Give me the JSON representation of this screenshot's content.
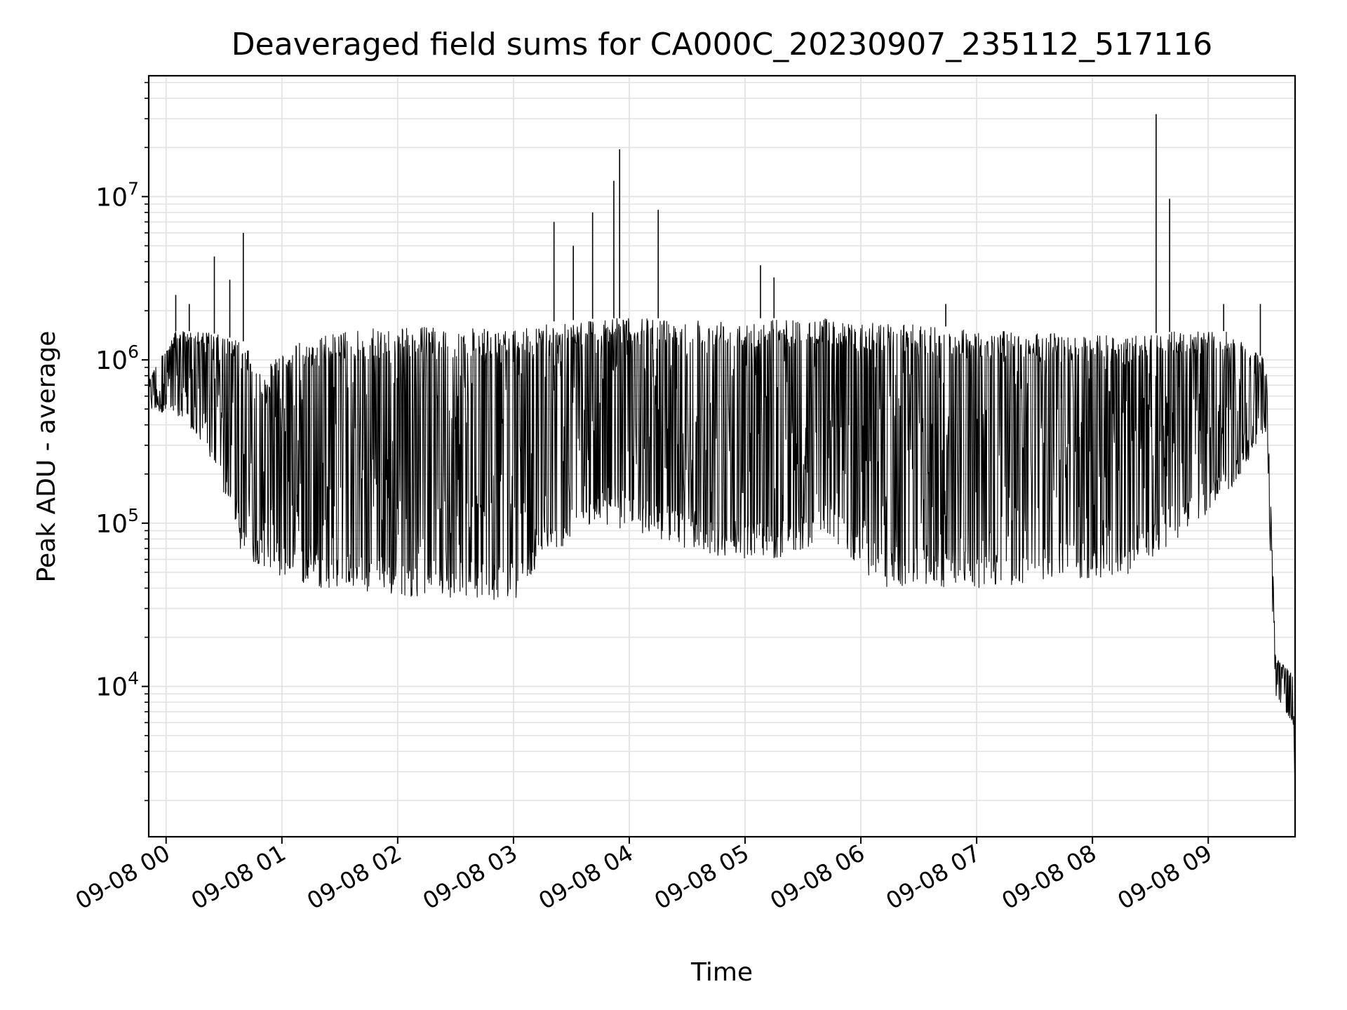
{
  "chart_data": {
    "type": "line",
    "title": "Deaveraged field sums for CA000C_20230907_235112_517116",
    "xlabel": "Time",
    "ylabel": "Peak ADU - average",
    "y_scale": "log",
    "ylim": [
      1200,
      55000000
    ],
    "xlim": [
      "2023-09-07 23:51",
      "2023-09-08 09:45"
    ],
    "grid": true,
    "legend": "none",
    "colors": {
      "line": "#000000",
      "grid": "#e3e3e3",
      "axes": "#000000",
      "background": "#ffffff"
    },
    "x_ticks": [
      {
        "time": "2023-09-08 00:00",
        "label": "09-08 00"
      },
      {
        "time": "2023-09-08 01:00",
        "label": "09-08 01"
      },
      {
        "time": "2023-09-08 02:00",
        "label": "09-08 02"
      },
      {
        "time": "2023-09-08 03:00",
        "label": "09-08 03"
      },
      {
        "time": "2023-09-08 04:00",
        "label": "09-08 04"
      },
      {
        "time": "2023-09-08 05:00",
        "label": "09-08 05"
      },
      {
        "time": "2023-09-08 06:00",
        "label": "09-08 06"
      },
      {
        "time": "2023-09-08 07:00",
        "label": "09-08 07"
      },
      {
        "time": "2023-09-08 08:00",
        "label": "09-08 08"
      },
      {
        "time": "2023-09-08 09:00",
        "label": "09-08 09"
      }
    ],
    "y_ticks": [
      {
        "value": 10000,
        "base": "10",
        "exp": "4"
      },
      {
        "value": 100000,
        "base": "10",
        "exp": "5"
      },
      {
        "value": 1000000,
        "base": "10",
        "exp": "6"
      },
      {
        "value": 10000000,
        "base": "10",
        "exp": "7"
      }
    ],
    "series": [
      {
        "time_start": "2023-09-07 23:51",
        "time_end": "2023-09-08 09:45",
        "envelope": [
          [
            "2023-09-07 23:51",
            500000,
            780000
          ],
          [
            "2023-09-08 00:05",
            450000,
            1500000
          ],
          [
            "2023-09-08 00:20",
            300000,
            1500000
          ],
          [
            "2023-09-08 00:30",
            150000,
            1400000
          ],
          [
            "2023-09-08 00:40",
            60000,
            1300000
          ],
          [
            "2023-09-08 00:50",
            55000,
            800000
          ],
          [
            "2023-09-08 01:00",
            45000,
            1200000
          ],
          [
            "2023-09-08 01:30",
            38000,
            1500000
          ],
          [
            "2023-09-08 02:00",
            35000,
            1600000
          ],
          [
            "2023-09-08 02:30",
            35000,
            1600000
          ],
          [
            "2023-09-08 03:00",
            33000,
            1500000
          ],
          [
            "2023-09-08 03:15",
            60000,
            1700000
          ],
          [
            "2023-09-08 03:45",
            100000,
            1800000
          ],
          [
            "2023-09-08 04:15",
            80000,
            1800000
          ],
          [
            "2023-09-08 04:45",
            60000,
            1800000
          ],
          [
            "2023-09-08 05:15",
            60000,
            1800000
          ],
          [
            "2023-09-08 05:45",
            80000,
            1800000
          ],
          [
            "2023-09-08 06:10",
            40000,
            1700000
          ],
          [
            "2023-09-08 06:45",
            40000,
            1600000
          ],
          [
            "2023-09-08 07:15",
            40000,
            1500000
          ],
          [
            "2023-09-08 07:45",
            45000,
            1450000
          ],
          [
            "2023-09-08 08:15",
            45000,
            1400000
          ],
          [
            "2023-09-08 08:45",
            80000,
            1500000
          ],
          [
            "2023-09-08 09:10",
            150000,
            1500000
          ],
          [
            "2023-09-08 09:30",
            350000,
            1000000
          ],
          [
            "2023-09-08 09:35",
            8000,
            15000
          ],
          [
            "2023-09-08 09:44",
            6000,
            12000
          ],
          [
            "2023-09-08 09:45",
            2000,
            2000
          ]
        ],
        "spikes": [
          [
            "2023-09-08 00:05",
            2500000
          ],
          [
            "2023-09-08 00:12",
            2200000
          ],
          [
            "2023-09-08 00:25",
            4300000
          ],
          [
            "2023-09-08 00:33",
            3100000
          ],
          [
            "2023-09-08 00:40",
            6000000
          ],
          [
            "2023-09-08 03:21",
            7000000
          ],
          [
            "2023-09-08 03:31",
            5000000
          ],
          [
            "2023-09-08 03:41",
            8000000
          ],
          [
            "2023-09-08 03:52",
            12500000
          ],
          [
            "2023-09-08 03:55",
            19500000
          ],
          [
            "2023-09-08 04:15",
            8300000
          ],
          [
            "2023-09-08 05:08",
            3800000
          ],
          [
            "2023-09-08 05:15",
            3200000
          ],
          [
            "2023-09-08 06:44",
            2200000
          ],
          [
            "2023-09-08 08:33",
            32000000
          ],
          [
            "2023-09-08 08:40",
            9700000
          ],
          [
            "2023-09-08 09:08",
            2200000
          ],
          [
            "2023-09-08 09:27",
            2200000
          ]
        ]
      }
    ]
  }
}
